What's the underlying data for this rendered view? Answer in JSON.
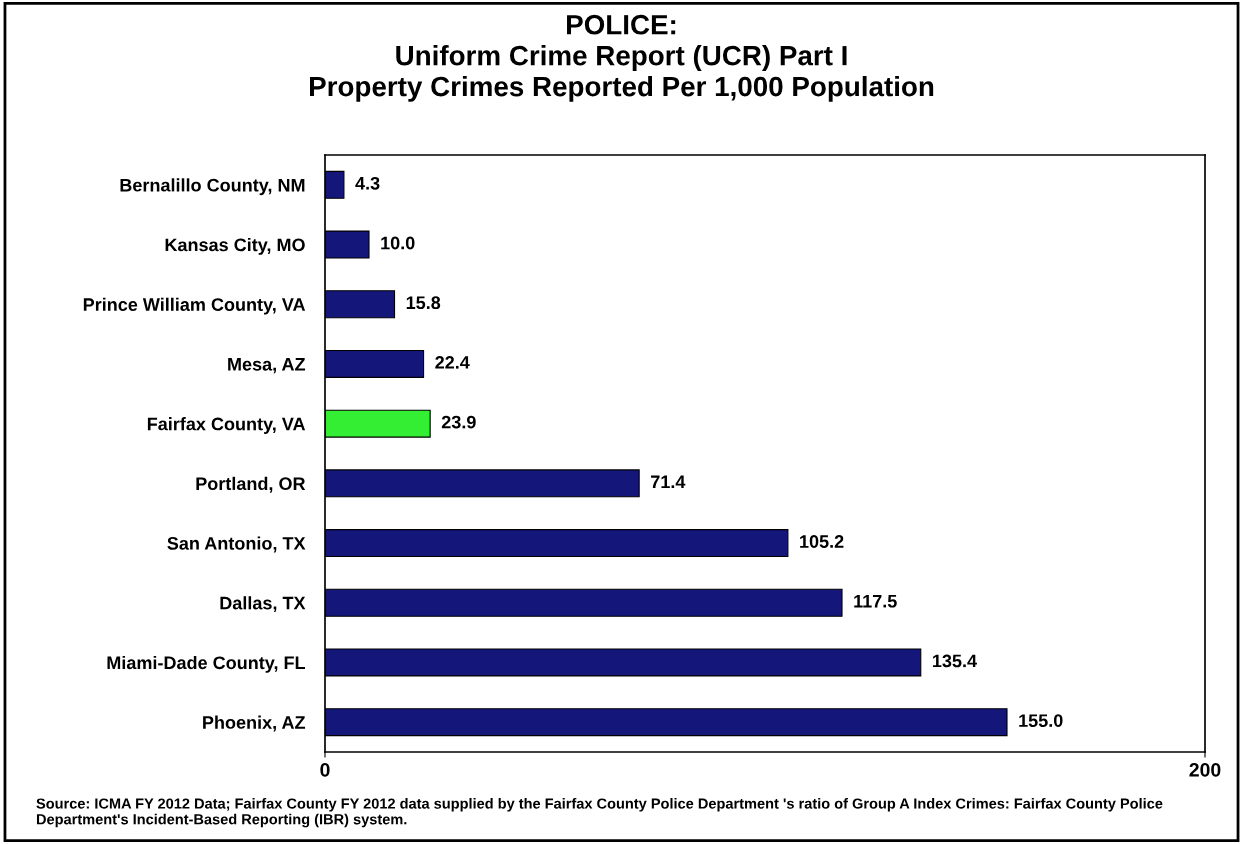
{
  "chart_data": {
    "type": "bar",
    "orientation": "horizontal",
    "title": "POLICE:\nUniform Crime Report (UCR) Part I\nProperty Crimes Reported Per 1,000 Population",
    "categories": [
      "Bernalillo County, NM",
      "Kansas City, MO",
      "Prince William County, VA",
      "Mesa, AZ",
      "Fairfax County, VA",
      "Portland, OR",
      "San Antonio, TX",
      "Dallas, TX",
      "Miami-Dade County, FL",
      "Phoenix, AZ"
    ],
    "values": [
      4.3,
      10.0,
      15.8,
      22.4,
      23.9,
      71.4,
      105.2,
      117.5,
      135.4,
      155.0
    ],
    "value_labels": [
      "4.3",
      "10.0",
      "15.8",
      "22.4",
      "23.9",
      "71.4",
      "105.2",
      "117.5",
      "135.4",
      "155.0"
    ],
    "colors": [
      "#14167a",
      "#14167a",
      "#14167a",
      "#14167a",
      "#33ee33",
      "#14167a",
      "#14167a",
      "#14167a",
      "#14167a",
      "#14167a"
    ],
    "xlim": [
      0,
      200
    ],
    "xticks": [
      0,
      200
    ],
    "grid": false,
    "annotations": [
      "Source: ICMA FY 2012 Data; Fairfax County FY 2012 data supplied by the Fairfax County Police Department 's ratio of Group A Index Crimes: Fairfax County Police Department's Incident-Based Reporting (IBR) system."
    ]
  }
}
